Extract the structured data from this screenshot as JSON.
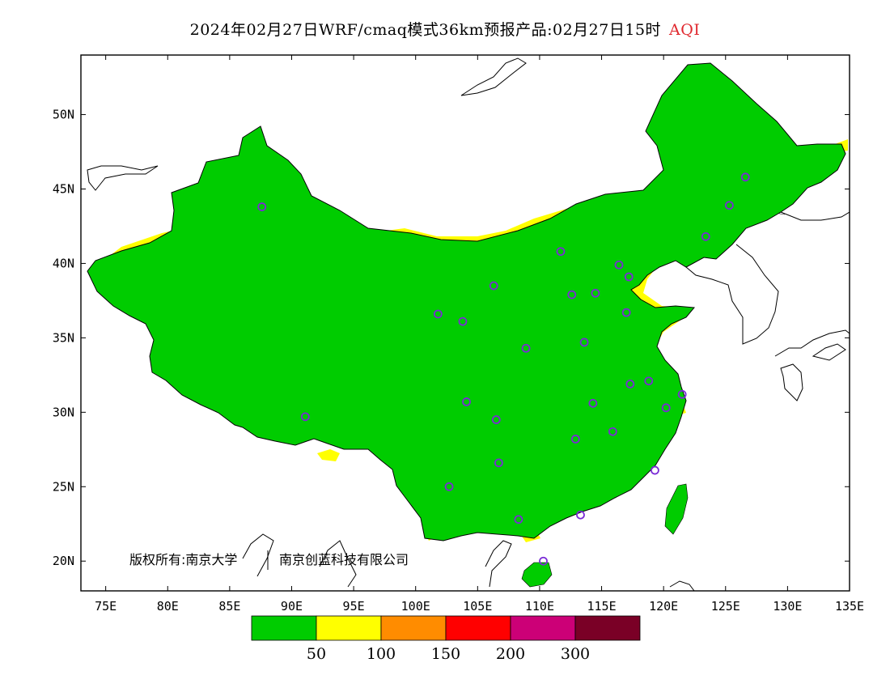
{
  "title": {
    "main": "2024年02月27日WRF/cmaq模式36km预报产品:02月27日15时",
    "variable": "AQI"
  },
  "axes": {
    "lat_labels": [
      "50N",
      "45N",
      "40N",
      "35N",
      "30N",
      "25N",
      "20N"
    ],
    "lat_values": [
      50,
      45,
      40,
      35,
      30,
      25,
      20
    ],
    "lon_labels": [
      "75E",
      "80E",
      "85E",
      "90E",
      "95E",
      "100E",
      "105E",
      "110E",
      "115E",
      "120E",
      "125E",
      "130E",
      "135E"
    ],
    "lon_values": [
      75,
      80,
      85,
      90,
      95,
      100,
      105,
      110,
      115,
      120,
      125,
      130,
      135
    ],
    "lon_range": [
      73,
      135
    ],
    "lat_range": [
      18,
      54
    ]
  },
  "colorbar": {
    "colors": [
      "#00cc00",
      "#ffff00",
      "#ff8c00",
      "#ff0000",
      "#cc0077",
      "#7a0026"
    ],
    "labels": [
      "50",
      "100",
      "150",
      "200",
      "300"
    ]
  },
  "copyright": {
    "owner": "版权所有:南京大学",
    "company": "南京创蓝科技有限公司"
  },
  "map_colors": {
    "good": "#00cc00",
    "moderate": "#ffff00",
    "unhealthy_sensitive": "#ff8c00",
    "unhealthy": "#ff0000",
    "very_unhealthy": "#cc0077",
    "hazardous": "#7a0026",
    "station_marker": "#7a2bd6"
  },
  "stations": [
    {
      "lon": 87.6,
      "lat": 43.8
    },
    {
      "lon": 91.1,
      "lat": 29.7
    },
    {
      "lon": 101.8,
      "lat": 36.6
    },
    {
      "lon": 103.8,
      "lat": 36.1
    },
    {
      "lon": 106.3,
      "lat": 38.5
    },
    {
      "lon": 111.7,
      "lat": 40.8
    },
    {
      "lon": 112.6,
      "lat": 37.9
    },
    {
      "lon": 114.5,
      "lat": 38.0
    },
    {
      "lon": 116.4,
      "lat": 39.9
    },
    {
      "lon": 117.2,
      "lat": 39.1
    },
    {
      "lon": 117.0,
      "lat": 36.7
    },
    {
      "lon": 113.6,
      "lat": 34.7
    },
    {
      "lon": 108.9,
      "lat": 34.3
    },
    {
      "lon": 117.3,
      "lat": 31.9
    },
    {
      "lon": 118.8,
      "lat": 32.1
    },
    {
      "lon": 121.5,
      "lat": 31.2
    },
    {
      "lon": 120.2,
      "lat": 30.3
    },
    {
      "lon": 114.3,
      "lat": 30.6
    },
    {
      "lon": 112.9,
      "lat": 28.2
    },
    {
      "lon": 115.9,
      "lat": 28.7
    },
    {
      "lon": 119.3,
      "lat": 26.1
    },
    {
      "lon": 113.3,
      "lat": 23.1
    },
    {
      "lon": 108.3,
      "lat": 22.8
    },
    {
      "lon": 110.3,
      "lat": 20.0
    },
    {
      "lon": 106.7,
      "lat": 26.6
    },
    {
      "lon": 102.7,
      "lat": 25.0
    },
    {
      "lon": 104.1,
      "lat": 30.7
    },
    {
      "lon": 106.5,
      "lat": 29.5
    },
    {
      "lon": 123.4,
      "lat": 41.8
    },
    {
      "lon": 125.3,
      "lat": 43.9
    },
    {
      "lon": 126.6,
      "lat": 45.8
    }
  ]
}
